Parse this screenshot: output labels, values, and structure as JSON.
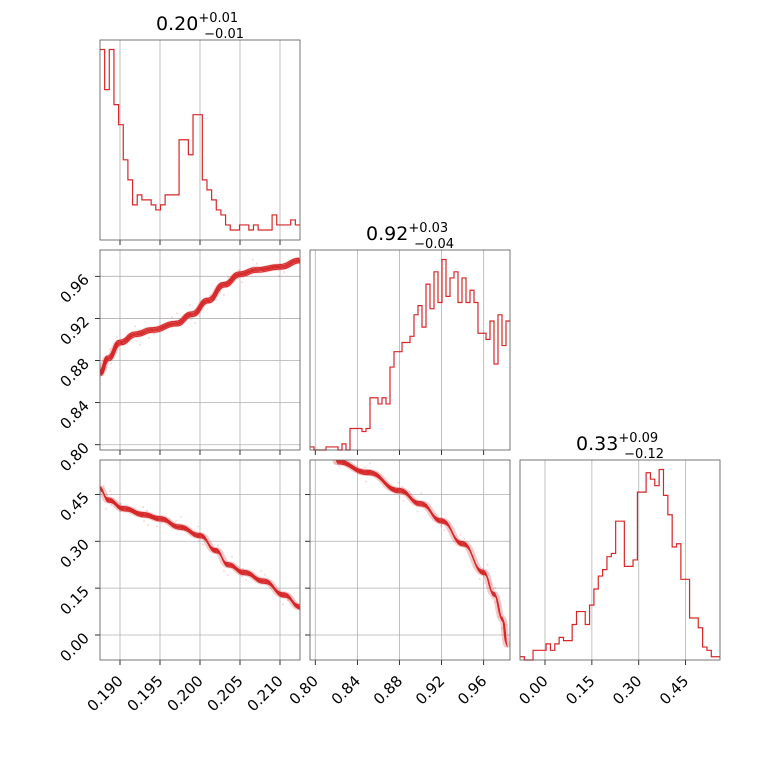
{
  "chart_data": {
    "type": "corner",
    "color": "#d62728",
    "parameters": [
      {
        "title_median": "0.20",
        "title_upper": "+0.01",
        "title_lower": "−0.01",
        "range": [
          0.1875,
          0.2125
        ],
        "ticks": [
          0.19,
          0.195,
          0.2,
          0.205,
          0.21
        ],
        "tick_labels": [
          "0.190",
          "0.195",
          "0.200",
          "0.205",
          "0.210"
        ],
        "hist_edges": [
          0.1875,
          0.2125
        ],
        "hist_counts": [
          38,
          30,
          38,
          27,
          23,
          16,
          12,
          7,
          9,
          8,
          8,
          7,
          6,
          7,
          9,
          9,
          9,
          20,
          20,
          17,
          25,
          25,
          12,
          10,
          8,
          6,
          5,
          3,
          2,
          2,
          3,
          3,
          2,
          3,
          2,
          2,
          2,
          5,
          3,
          3,
          3,
          4,
          3
        ]
      },
      {
        "title_median": "0.92",
        "title_upper": "+0.03",
        "title_lower": "−0.04",
        "range": [
          0.795,
          0.985
        ],
        "ticks": [
          0.8,
          0.84,
          0.88,
          0.92,
          0.96
        ],
        "tick_labels": [
          "0.80",
          "0.84",
          "0.88",
          "0.92",
          "0.96"
        ],
        "hist_edges": [
          0.795,
          0.985
        ],
        "hist_counts": [
          1,
          0,
          0,
          0,
          1,
          1,
          1,
          0,
          2,
          0,
          7,
          7,
          7,
          6,
          7,
          17,
          17,
          15,
          17,
          15,
          27,
          32,
          32,
          35,
          35,
          37,
          44,
          47,
          40,
          54,
          46,
          58,
          48,
          62,
          50,
          56,
          58,
          48,
          56,
          48,
          52,
          48,
          38,
          38,
          36,
          42,
          28,
          44,
          34,
          42
        ]
      },
      {
        "title_median": "0.33",
        "title_upper": "+0.09",
        "title_lower": "−0.12",
        "range": [
          -0.08,
          0.56
        ],
        "ticks": [
          0.0,
          0.15,
          0.3,
          0.45
        ],
        "tick_labels": [
          "0.00",
          "0.15",
          "0.30",
          "0.45"
        ],
        "hist_edges": [
          -0.08,
          0.56
        ],
        "hist_counts": [
          1,
          0,
          0,
          3,
          3,
          3,
          5,
          3,
          5,
          7,
          6,
          6,
          11,
          15,
          15,
          11,
          17,
          22,
          26,
          28,
          32,
          33,
          43,
          43,
          29,
          29,
          31,
          52,
          52,
          58,
          56,
          54,
          59,
          51,
          45,
          35,
          36,
          25,
          25,
          13,
          13,
          10,
          4,
          3,
          1,
          1
        ]
      }
    ],
    "joint": [
      {
        "x_param": 0,
        "y_param": 1,
        "ridge": [
          [
            0.1875,
            0.868
          ],
          [
            0.1885,
            0.882
          ],
          [
            0.19,
            0.897
          ],
          [
            0.192,
            0.905
          ],
          [
            0.194,
            0.909
          ],
          [
            0.197,
            0.915
          ],
          [
            0.199,
            0.924
          ],
          [
            0.201,
            0.937
          ],
          [
            0.203,
            0.952
          ],
          [
            0.205,
            0.962
          ],
          [
            0.207,
            0.966
          ],
          [
            0.21,
            0.969
          ],
          [
            0.2125,
            0.975
          ]
        ]
      },
      {
        "x_param": 0,
        "y_param": 2,
        "ridge": [
          [
            0.1875,
            0.468
          ],
          [
            0.1885,
            0.432
          ],
          [
            0.1905,
            0.404
          ],
          [
            0.193,
            0.385
          ],
          [
            0.195,
            0.372
          ],
          [
            0.1975,
            0.345
          ],
          [
            0.2,
            0.318
          ],
          [
            0.202,
            0.27
          ],
          [
            0.2035,
            0.225
          ],
          [
            0.2055,
            0.2
          ],
          [
            0.208,
            0.172
          ],
          [
            0.2105,
            0.128
          ],
          [
            0.2125,
            0.09
          ]
        ]
      },
      {
        "x_param": 1,
        "y_param": 2,
        "ridge": [
          [
            0.82,
            0.555
          ],
          [
            0.85,
            0.52
          ],
          [
            0.88,
            0.462
          ],
          [
            0.9,
            0.42
          ],
          [
            0.92,
            0.365
          ],
          [
            0.94,
            0.292
          ],
          [
            0.96,
            0.2
          ],
          [
            0.97,
            0.13
          ],
          [
            0.978,
            0.05
          ],
          [
            0.982,
            -0.03
          ]
        ]
      }
    ]
  }
}
